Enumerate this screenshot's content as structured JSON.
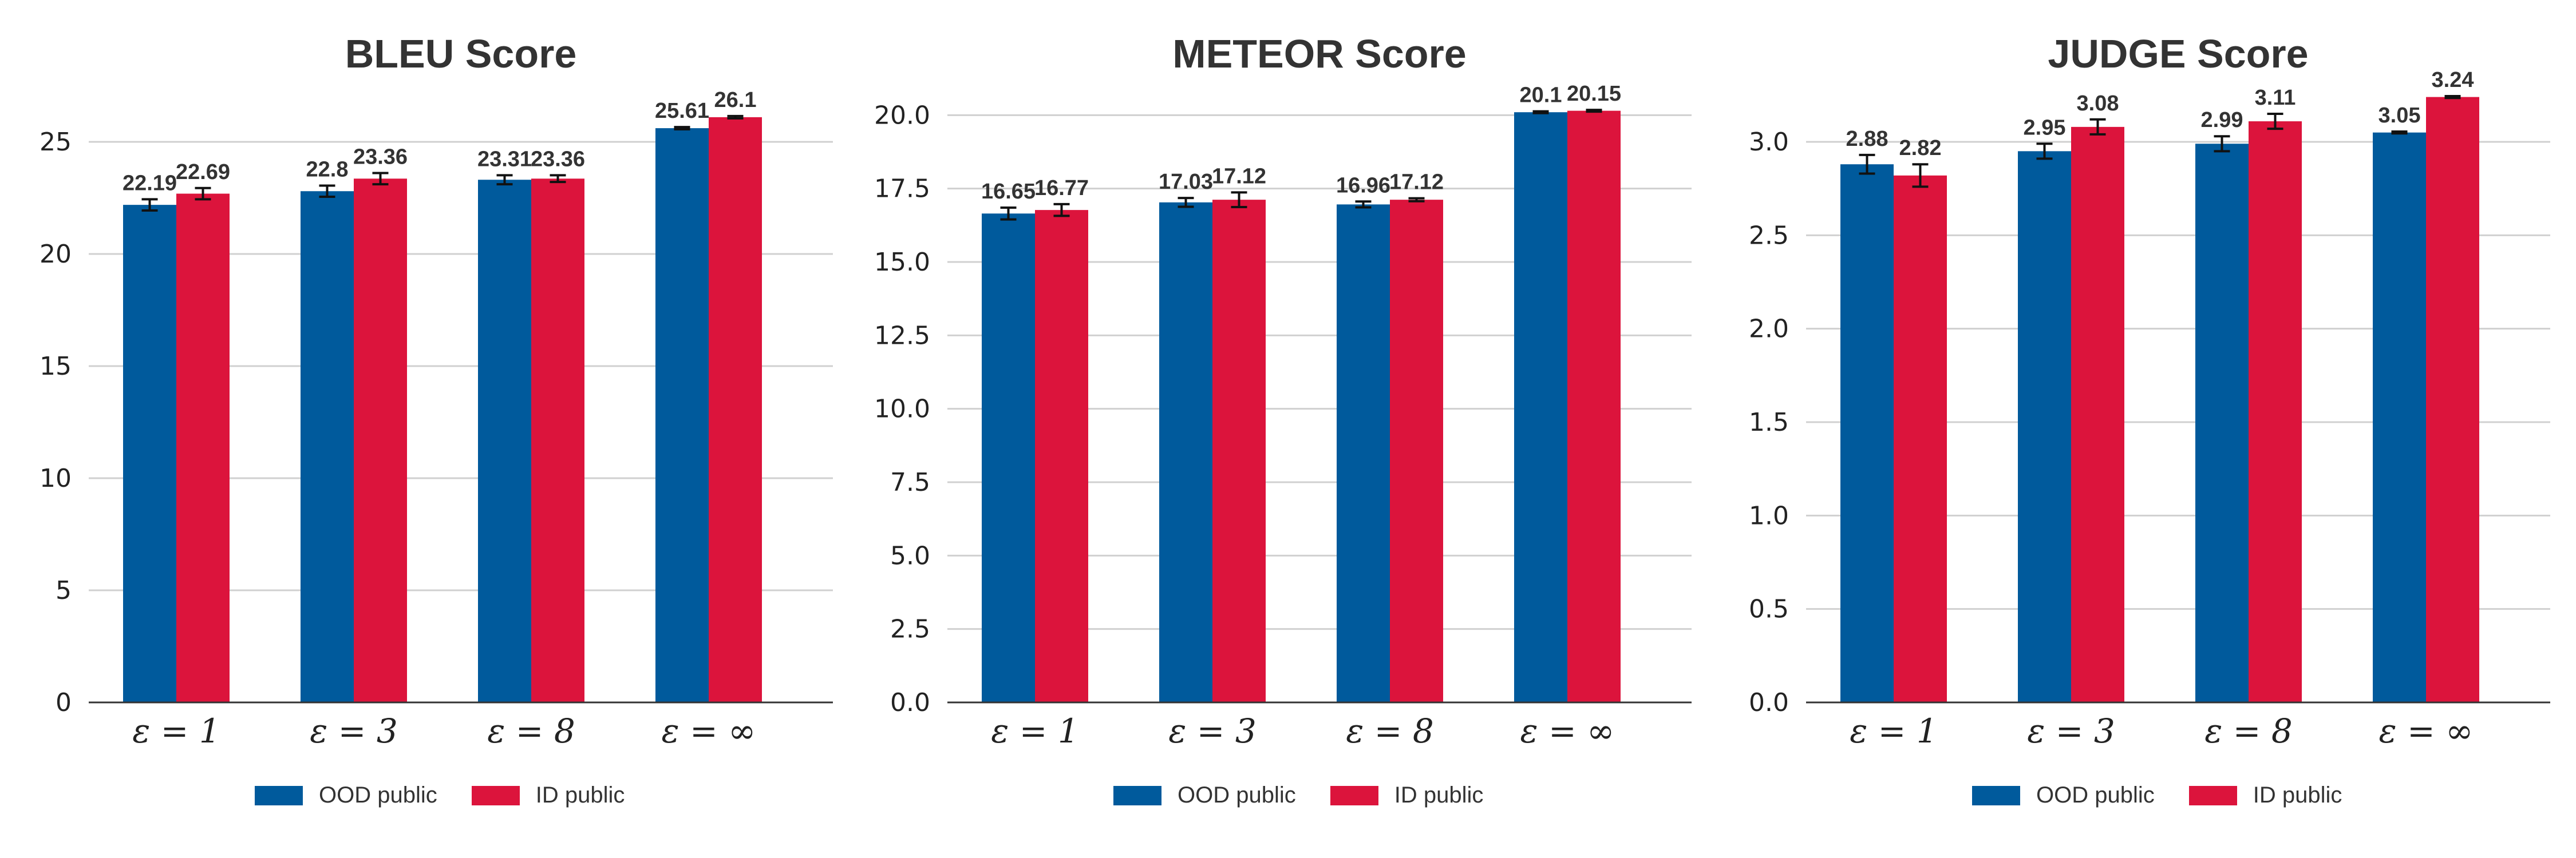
{
  "colors": {
    "series_0": "#005a9c",
    "series_1": "#dc143c",
    "grid": "#d0d0d0",
    "axis": "#333333"
  },
  "chart_data": [
    {
      "type": "bar",
      "title": "BLEU Score",
      "categories": [
        "ε = 1",
        "ε = 3",
        "ε = 8",
        "ε = ∞"
      ],
      "series": [
        {
          "name": "OOD public",
          "values": [
            22.19,
            22.8,
            23.31,
            25.61
          ],
          "errors": [
            0.25,
            0.25,
            0.2,
            0.05
          ]
        },
        {
          "name": "ID public",
          "values": [
            22.69,
            23.36,
            23.36,
            26.1
          ],
          "errors": [
            0.25,
            0.25,
            0.15,
            0.05
          ]
        }
      ],
      "value_labels": [
        [
          "22.19",
          "22.8",
          "23.31",
          "25.61"
        ],
        [
          "22.69",
          "23.36",
          "23.36",
          "26.1"
        ]
      ],
      "ylim": [
        0,
        27.5
      ],
      "yticks": [
        0,
        5,
        10,
        15,
        20,
        25
      ],
      "ytick_labels": [
        "0",
        "5",
        "10",
        "15",
        "20",
        "25"
      ],
      "grid": true,
      "legend": "bottom"
    },
    {
      "type": "bar",
      "title": "METEOR Score",
      "categories": [
        "ε = 1",
        "ε = 3",
        "ε = 8",
        "ε = ∞"
      ],
      "series": [
        {
          "name": "OOD public",
          "values": [
            16.65,
            17.03,
            16.96,
            20.1
          ],
          "errors": [
            0.2,
            0.15,
            0.1,
            0.03
          ]
        },
        {
          "name": "ID public",
          "values": [
            16.77,
            17.12,
            17.12,
            20.15
          ],
          "errors": [
            0.2,
            0.25,
            0.05,
            0.03
          ]
        }
      ],
      "value_labels": [
        [
          "16.65",
          "17.03",
          "16.96",
          "20.1"
        ],
        [
          "16.77",
          "17.12",
          "17.12",
          "20.15"
        ]
      ],
      "ylim": [
        0,
        21
      ],
      "yticks": [
        0,
        2.5,
        5,
        7.5,
        10,
        12.5,
        15,
        17.5,
        20
      ],
      "ytick_labels": [
        "0.0",
        "2.5",
        "5.0",
        "7.5",
        "10.0",
        "12.5",
        "15.0",
        "17.5",
        "20.0"
      ],
      "grid": true,
      "legend": "bottom"
    },
    {
      "type": "bar",
      "title": "JUDGE Score",
      "categories": [
        "ε = 1",
        "ε = 3",
        "ε = 8",
        "ε = ∞"
      ],
      "series": [
        {
          "name": "OOD public",
          "values": [
            2.88,
            2.95,
            2.99,
            3.05
          ],
          "errors": [
            0.05,
            0.04,
            0.04,
            0.005
          ]
        },
        {
          "name": "ID public",
          "values": [
            2.82,
            3.08,
            3.11,
            3.24
          ],
          "errors": [
            0.06,
            0.04,
            0.04,
            0.005
          ]
        }
      ],
      "value_labels": [
        [
          "2.88",
          "2.95",
          "2.99",
          "3.05"
        ],
        [
          "2.82",
          "3.08",
          "3.11",
          "3.24"
        ]
      ],
      "ylim": [
        0,
        3.3
      ],
      "yticks": [
        0,
        0.5,
        1,
        1.5,
        2,
        2.5,
        3
      ],
      "ytick_labels": [
        "0.0",
        "0.5",
        "1.0",
        "1.5",
        "2.0",
        "2.5",
        "3.0"
      ],
      "grid": true,
      "legend": "bottom"
    }
  ]
}
